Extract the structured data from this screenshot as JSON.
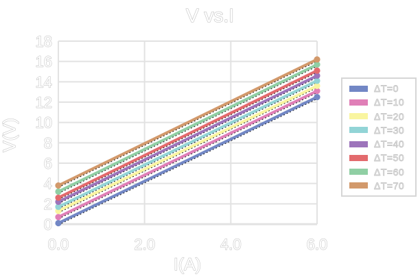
{
  "title": "V vs.I",
  "colors": {
    "background": "#ffffff",
    "grid": "#e2e2e2",
    "text_fill": "#ffffff",
    "text_outline": "#c6c6c6",
    "legend_border": "#d6d6d6",
    "trendline": "#000000"
  },
  "chart_data": {
    "type": "line",
    "title": "V vs.I",
    "xlabel": "I(A)",
    "ylabel": "V(V)",
    "xlim": [
      0,
      6
    ],
    "ylim": [
      0,
      18
    ],
    "grid": true,
    "legend_position": "right",
    "marker": "circle-at-endpoints",
    "trendline": "black dashed linear fit behind each series",
    "xticks": [
      "0.0",
      "2.0",
      "4.0",
      "6.0"
    ],
    "xtick_values": [
      0,
      2,
      4,
      6
    ],
    "yticks": [
      "0",
      "2",
      "4",
      "6",
      "8",
      "10",
      "12",
      "14",
      "16",
      "18"
    ],
    "ytick_values": [
      0,
      2,
      4,
      6,
      8,
      10,
      12,
      14,
      16,
      18
    ],
    "x": [
      0,
      6
    ],
    "series": [
      {
        "name": "ΔT=0",
        "color": "#7287c5",
        "values": [
          0.1,
          12.5
        ]
      },
      {
        "name": "ΔT=10",
        "color": "#e07fb7",
        "values": [
          0.7,
          13.1
        ]
      },
      {
        "name": "ΔT=20",
        "color": "#f9f5a0",
        "values": [
          1.3,
          13.6
        ]
      },
      {
        "name": "ΔT=30",
        "color": "#92d4d6",
        "values": [
          1.7,
          14.1
        ]
      },
      {
        "name": "ΔT=40",
        "color": "#9d74bb",
        "values": [
          2.2,
          14.6
        ]
      },
      {
        "name": "ΔT=50",
        "color": "#e36a6d",
        "values": [
          2.6,
          15.1
        ]
      },
      {
        "name": "ΔT=60",
        "color": "#90cfa4",
        "values": [
          3.2,
          15.7
        ]
      },
      {
        "name": "ΔT=70",
        "color": "#d2996b",
        "values": [
          3.8,
          16.2
        ]
      }
    ]
  }
}
